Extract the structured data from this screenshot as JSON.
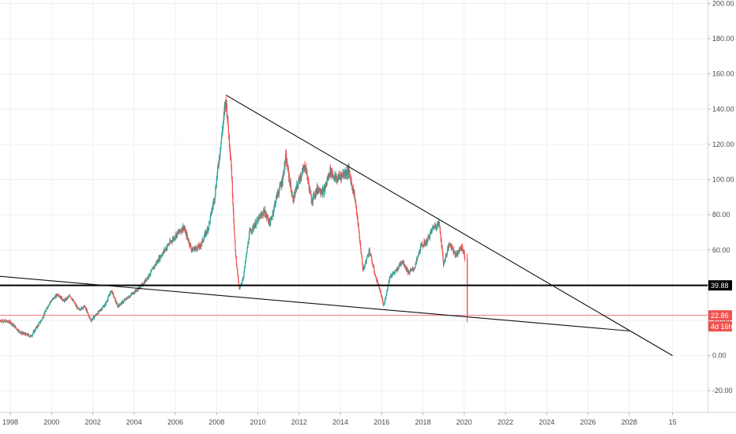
{
  "chart_data": {
    "type": "candlestick",
    "title": "",
    "xlabel": "",
    "ylabel": "",
    "x_ticks": [
      "1998",
      "2000",
      "2002",
      "2004",
      "2006",
      "2008",
      "2010",
      "2012",
      "2014",
      "2016",
      "2018",
      "2020",
      "2022",
      "2024",
      "2026",
      "2028",
      "15"
    ],
    "x_range": [
      1997.5,
      2031.8
    ],
    "y_ticks": [
      "-20.00",
      "0.00",
      "20.00",
      "40.00",
      "60.00",
      "80.00",
      "100.00",
      "120.00",
      "140.00",
      "160.00",
      "180.00",
      "200.00"
    ],
    "y_range": [
      -32,
      202
    ],
    "grid": true,
    "up_color": "#26a69a",
    "down_color": "#ef5350",
    "price_path": [
      [
        1997.5,
        20
      ],
      [
        1998.0,
        19
      ],
      [
        1998.5,
        13
      ],
      [
        1999.0,
        11
      ],
      [
        1999.5,
        20
      ],
      [
        1999.9,
        30
      ],
      [
        2000.3,
        35
      ],
      [
        2000.6,
        31
      ],
      [
        2000.9,
        34
      ],
      [
        2001.3,
        26
      ],
      [
        2001.6,
        28
      ],
      [
        2001.9,
        20
      ],
      [
        2002.3,
        25
      ],
      [
        2002.6,
        29
      ],
      [
        2002.9,
        37
      ],
      [
        2003.2,
        28
      ],
      [
        2003.6,
        32
      ],
      [
        2004.0,
        36
      ],
      [
        2004.4,
        40
      ],
      [
        2004.8,
        47
      ],
      [
        2005.2,
        55
      ],
      [
        2005.6,
        62
      ],
      [
        2006.0,
        68
      ],
      [
        2006.4,
        73
      ],
      [
        2006.8,
        60
      ],
      [
        2007.2,
        62
      ],
      [
        2007.6,
        73
      ],
      [
        2007.9,
        90
      ],
      [
        2008.2,
        120
      ],
      [
        2008.45,
        146
      ],
      [
        2008.7,
        110
      ],
      [
        2008.9,
        60
      ],
      [
        2009.1,
        37
      ],
      [
        2009.3,
        45
      ],
      [
        2009.6,
        70
      ],
      [
        2009.9,
        75
      ],
      [
        2010.3,
        82
      ],
      [
        2010.6,
        75
      ],
      [
        2010.9,
        90
      ],
      [
        2011.2,
        100
      ],
      [
        2011.35,
        113
      ],
      [
        2011.7,
        88
      ],
      [
        2012.0,
        100
      ],
      [
        2012.3,
        108
      ],
      [
        2012.6,
        88
      ],
      [
        2012.9,
        95
      ],
      [
        2013.2,
        93
      ],
      [
        2013.5,
        105
      ],
      [
        2013.8,
        100
      ],
      [
        2014.1,
        103
      ],
      [
        2014.4,
        105
      ],
      [
        2014.7,
        90
      ],
      [
        2014.9,
        70
      ],
      [
        2015.1,
        48
      ],
      [
        2015.4,
        60
      ],
      [
        2015.7,
        45
      ],
      [
        2015.9,
        38
      ],
      [
        2016.1,
        28
      ],
      [
        2016.4,
        45
      ],
      [
        2016.7,
        48
      ],
      [
        2017.0,
        54
      ],
      [
        2017.3,
        47
      ],
      [
        2017.6,
        50
      ],
      [
        2017.9,
        62
      ],
      [
        2018.2,
        65
      ],
      [
        2018.5,
        73
      ],
      [
        2018.8,
        75
      ],
      [
        2019.0,
        52
      ],
      [
        2019.3,
        64
      ],
      [
        2019.6,
        57
      ],
      [
        2019.9,
        62
      ],
      [
        2020.05,
        55
      ],
      [
        2020.15,
        22.86
      ]
    ],
    "trendlines": [
      {
        "x1": 2008.45,
        "y1": 148,
        "x2": 2030.1,
        "y2": 0
      },
      {
        "x1": 1997.5,
        "y1": 45,
        "x2": 2028.0,
        "y2": 14
      }
    ],
    "horizontal_lines": [
      {
        "value": 39.88,
        "label": "39.88",
        "color": "#000000"
      },
      {
        "value": 22.86,
        "label": "22.86",
        "color": "#ef5350"
      }
    ],
    "price_tags": [
      {
        "text": "39.88",
        "value": 39.88,
        "background": "#000000",
        "color": "#ffffff"
      },
      {
        "text": "22.86",
        "value": 22.86,
        "background": "#ef5350",
        "color": "#ffffff"
      },
      {
        "text": "4d 16h",
        "value": 14.5,
        "background": "#ef5350",
        "color": "#ffffff"
      }
    ]
  }
}
